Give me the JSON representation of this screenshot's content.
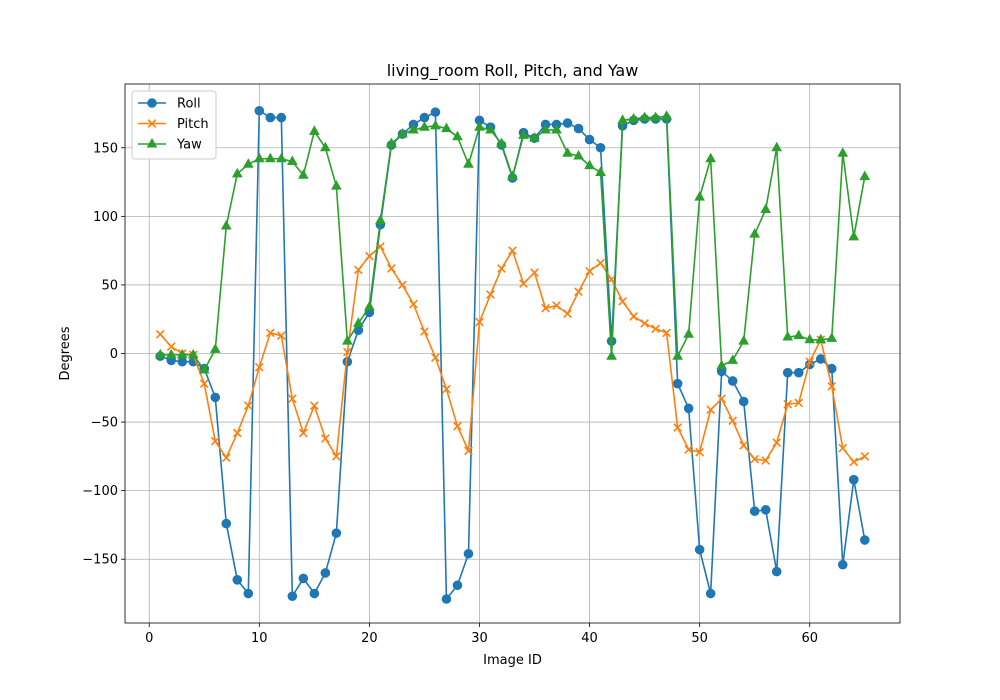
{
  "chart_data": {
    "type": "line",
    "title": "living_room Roll, Pitch, and Yaw",
    "xlabel": "Image ID",
    "ylabel": "Degrees",
    "xlim": [
      -2.2,
      68.2
    ],
    "ylim": [
      -196.5,
      196.5
    ],
    "xticks": [
      0,
      10,
      20,
      30,
      40,
      50,
      60
    ],
    "yticks": [
      -150,
      -100,
      -50,
      0,
      50,
      100,
      150
    ],
    "grid": true,
    "legend_position": "top-left",
    "x": [
      1,
      2,
      3,
      4,
      5,
      6,
      7,
      8,
      9,
      10,
      11,
      12,
      13,
      14,
      15,
      16,
      17,
      18,
      19,
      20,
      21,
      22,
      23,
      24,
      25,
      26,
      27,
      28,
      29,
      30,
      31,
      32,
      33,
      34,
      35,
      36,
      37,
      38,
      39,
      40,
      41,
      42,
      43,
      44,
      45,
      46,
      47,
      48,
      49,
      50,
      51,
      52,
      53,
      54,
      55,
      56,
      57,
      58,
      59,
      60,
      61,
      62,
      63,
      64,
      65
    ],
    "series": [
      {
        "name": "Roll",
        "color": "#1f77b4",
        "marker": "circle",
        "values": [
          -2,
          -5,
          -6,
          -6,
          -11,
          -32,
          -124,
          -165,
          -175,
          177,
          172,
          172,
          -177,
          -164,
          -175,
          -160,
          -131,
          -6,
          17,
          30,
          94,
          152,
          160,
          167,
          172,
          176,
          -179,
          -169,
          -146,
          170,
          165,
          152,
          128,
          161,
          157,
          167,
          167,
          168,
          164,
          156,
          150,
          9,
          166,
          170,
          171,
          171,
          171,
          -22,
          -40,
          -143,
          -175,
          -13,
          -20,
          -35,
          -115,
          -114,
          -159,
          -14,
          -14,
          -8,
          -4,
          -11,
          -154,
          -92,
          -136
        ]
      },
      {
        "name": "Pitch",
        "color": "#ff7f0e",
        "marker": "x",
        "values": [
          14,
          5,
          0,
          -1,
          -22,
          -64,
          -76,
          -58,
          -38,
          -10,
          15,
          13,
          -33,
          -58,
          -38,
          -62,
          -75,
          1,
          61,
          71,
          78,
          62,
          50,
          36,
          16,
          -3,
          -26,
          -53,
          -71,
          23,
          43,
          62,
          75,
          51,
          59,
          33,
          35,
          29,
          45,
          60,
          66,
          54,
          38,
          27,
          22,
          18,
          15,
          -54,
          -70,
          -72,
          -41,
          -33,
          -49,
          -67,
          -77,
          -78,
          -65,
          -37,
          -36,
          -6,
          10,
          -24,
          -69,
          -79,
          -75
        ]
      },
      {
        "name": "Yaw",
        "color": "#2ca02c",
        "marker": "triangle",
        "values": [
          -1,
          -1,
          -1,
          -1,
          -12,
          3,
          93,
          131,
          138,
          142,
          142,
          142,
          140,
          130,
          162,
          150,
          122,
          9,
          22,
          34,
          97,
          153,
          160,
          163,
          165,
          166,
          164,
          158,
          138,
          165,
          163,
          153,
          129,
          159,
          157,
          163,
          163,
          146,
          144,
          137,
          132,
          -2,
          170,
          171,
          172,
          172,
          173,
          -2,
          14,
          114,
          142,
          -9,
          -5,
          9,
          87,
          105,
          150,
          12,
          13,
          10,
          10,
          11,
          146,
          85,
          129
        ]
      }
    ]
  }
}
